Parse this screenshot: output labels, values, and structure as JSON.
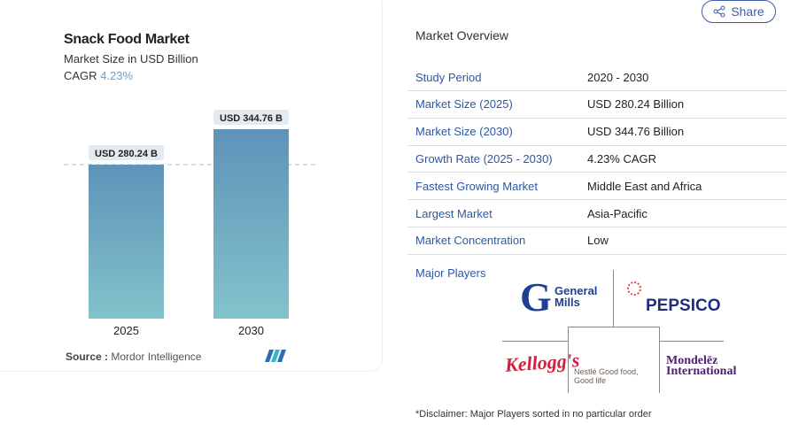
{
  "chart_data": {
    "type": "bar",
    "title": "Snack Food Market",
    "subtitle": "Market Size in USD Billion",
    "cagr_label": "CAGR",
    "cagr_value": "4.23%",
    "categories": [
      "2025",
      "2030"
    ],
    "values": [
      280.24,
      344.76
    ],
    "data_labels": [
      "USD 280.24 B",
      "USD 344.76 B"
    ],
    "ylim": [
      0,
      344.76
    ],
    "bar_color_top": "#5f92b8",
    "bar_color_bottom": "#82c3cb",
    "reference_line": "dashed at 2025 value",
    "source_label": "Source :",
    "source": "Mordor Intelligence"
  },
  "share": {
    "label": "Share",
    "icon": "share-icon"
  },
  "overview": {
    "title": "Market Overview",
    "rows": [
      {
        "k": "Study Period",
        "v": "2020 - 2030"
      },
      {
        "k": "Market Size (2025)",
        "v": "USD 280.24 Billion"
      },
      {
        "k": "Market Size (2030)",
        "v": "USD 344.76 Billion"
      },
      {
        "k": "Growth Rate (2025 - 2030)",
        "v": "4.23% CAGR"
      },
      {
        "k": "Fastest Growing Market",
        "v": "Middle East and Africa"
      },
      {
        "k": "Largest Market",
        "v": "Asia-Pacific"
      },
      {
        "k": "Market Concentration",
        "v": "Low"
      }
    ],
    "major_players_label": "Major Players",
    "players": [
      "General Mills",
      "PEPSICO",
      "Kellogg's",
      "Nestlé Good food, Good life",
      "Mondelēz International"
    ],
    "disclaimer": "*Disclaimer: Major Players sorted in no particular order"
  }
}
